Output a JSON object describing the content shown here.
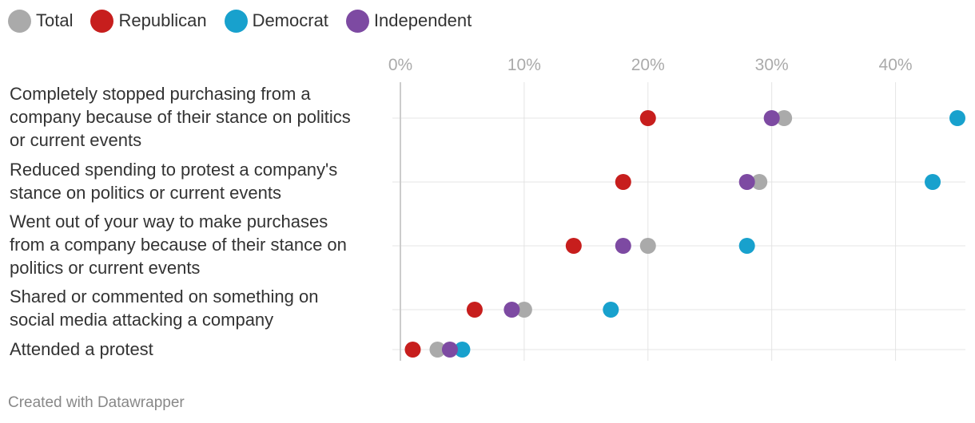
{
  "legend": {
    "total": "Total",
    "republican": "Republican",
    "democrat": "Democrat",
    "independent": "Independent"
  },
  "footer": "Created with Datawrapper",
  "colors": {
    "total": "#aaaaaa",
    "republican": "#c71e1d",
    "democrat": "#18a1cd",
    "independent": "#7d4aa2"
  },
  "chart_data": {
    "type": "scatter",
    "subtype": "dot-range",
    "title": "",
    "xlabel": "",
    "ylabel": "",
    "xlim": [
      0,
      45
    ],
    "x_ticks": [
      0,
      10,
      20,
      30,
      40
    ],
    "x_tick_labels": [
      "0%",
      "10%",
      "20%",
      "30%",
      "40%"
    ],
    "grid": true,
    "legend_position": "top-left",
    "categories": [
      "Completely stopped purchasing from a company because of their stance on politics or current events",
      "Reduced spending to protest a company's stance on politics or current events",
      "Went out of your way to make purchases from a company because of their stance on politics or current events",
      "Shared or commented on something on social media attacking a company",
      "Attended a protest"
    ],
    "category_lines": [
      [
        "Completely stopped purchasing from a",
        "company because of their stance on politics",
        "or current events"
      ],
      [
        "Reduced spending to protest a company's",
        "stance on politics or current events"
      ],
      [
        "Went out of your way to make purchases",
        "from a company because of their stance on",
        "politics or current events"
      ],
      [
        "Shared or commented on something on",
        "social media attacking a company"
      ],
      [
        "Attended a protest"
      ]
    ],
    "series": [
      {
        "name": "Total",
        "key": "total",
        "values": [
          31,
          29,
          20,
          10,
          3
        ]
      },
      {
        "name": "Republican",
        "key": "republican",
        "values": [
          20,
          18,
          14,
          6,
          1
        ]
      },
      {
        "name": "Democrat",
        "key": "democrat",
        "values": [
          45,
          43,
          28,
          17,
          5
        ]
      },
      {
        "name": "Independent",
        "key": "independent",
        "values": [
          30,
          28,
          18,
          9,
          4
        ]
      }
    ]
  }
}
